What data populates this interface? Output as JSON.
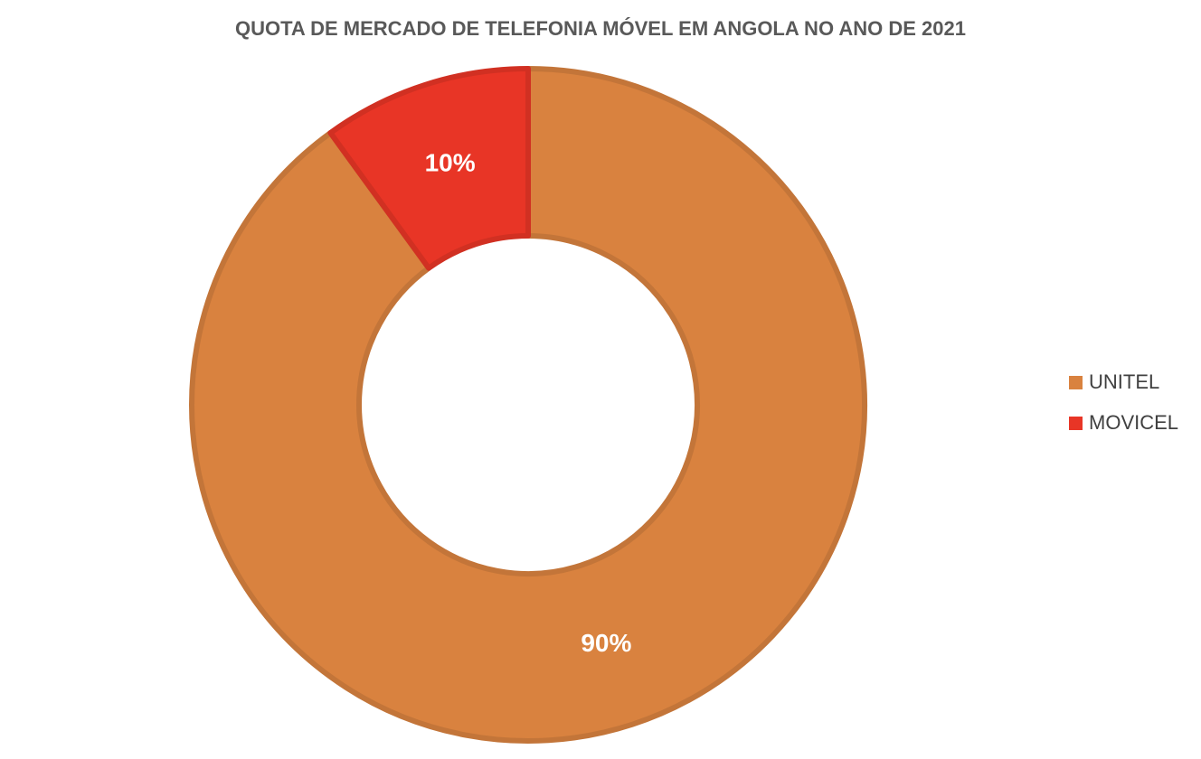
{
  "chart_data": {
    "type": "donut",
    "title": "QUOTA DE MERCADO DE TELEFONIA MÓVEL EM ANGOLA NO ANO DE 2021",
    "categories": [
      "UNITEL",
      "MOVICEL"
    ],
    "values": [
      90,
      10
    ],
    "value_labels": [
      "90%",
      "10%"
    ],
    "colors": [
      "#d9823f",
      "#e83526"
    ],
    "legend": "right"
  }
}
